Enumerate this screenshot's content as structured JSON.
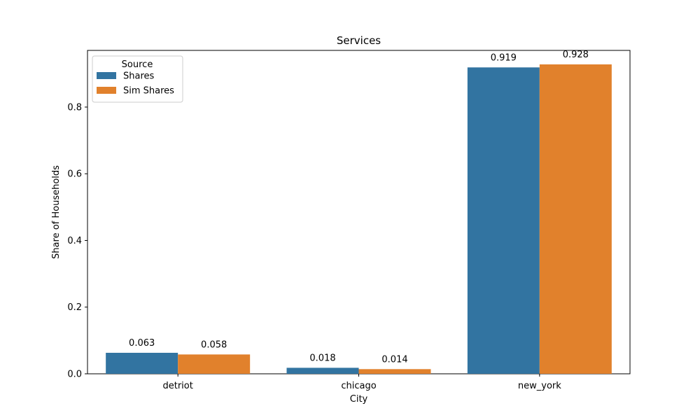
{
  "chart_data": {
    "type": "bar",
    "title": "Services",
    "xlabel": "City",
    "ylabel": "Share of Households",
    "categories": [
      "detriot",
      "chicago",
      "new_york"
    ],
    "series": [
      {
        "name": "Shares",
        "values": [
          0.063,
          0.018,
          0.919
        ],
        "labels": [
          "0.063",
          "0.018",
          "0.919"
        ],
        "color": "#3274a1"
      },
      {
        "name": "Sim Shares",
        "values": [
          0.058,
          0.014,
          0.928
        ],
        "labels": [
          "0.058",
          "0.014",
          "0.928"
        ],
        "color": "#e1812c"
      }
    ],
    "ylim": [
      0,
      0.97
    ],
    "yticks": [
      0.0,
      0.2,
      0.4,
      0.6,
      0.8
    ],
    "ytick_labels": [
      "0.0",
      "0.2",
      "0.4",
      "0.6",
      "0.8"
    ],
    "legend": {
      "title": "Source",
      "placement": "top-left"
    },
    "grid": false
  }
}
